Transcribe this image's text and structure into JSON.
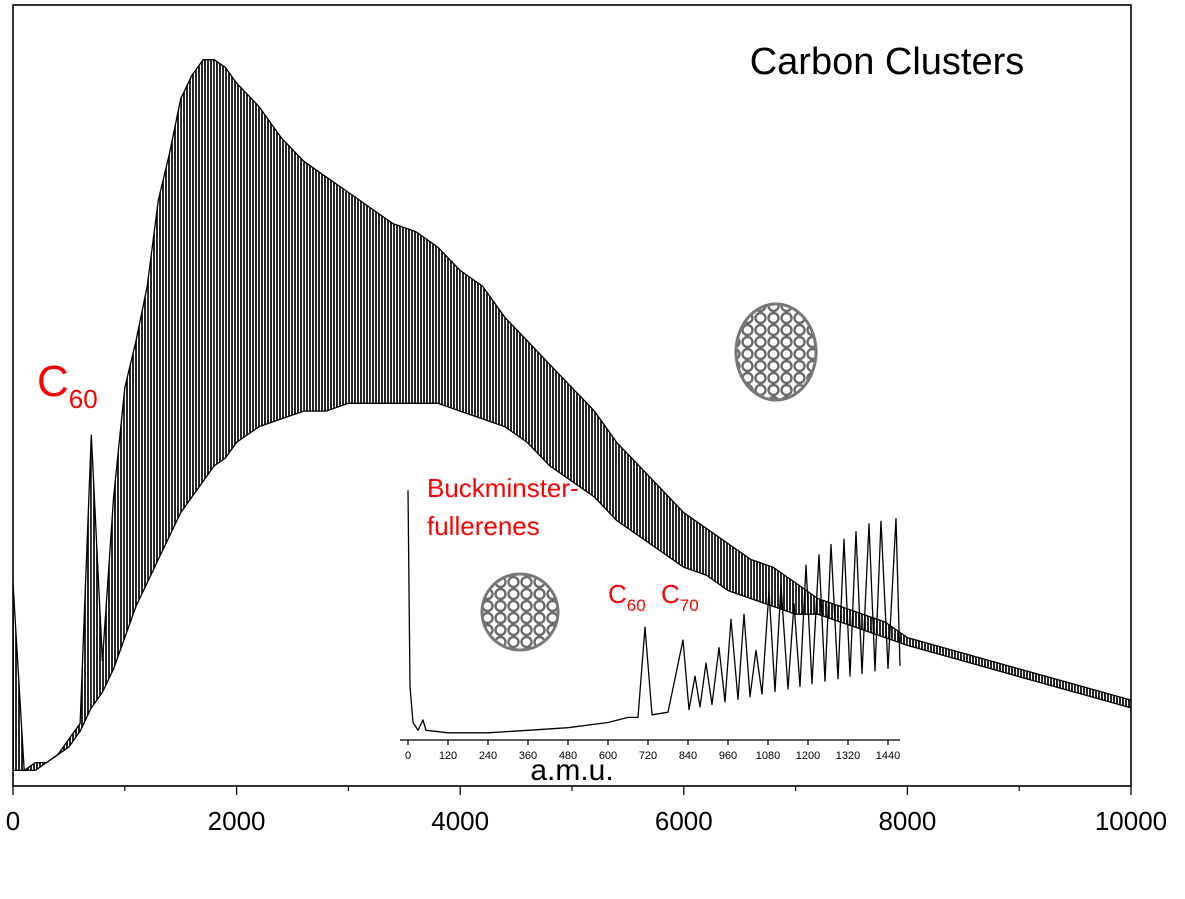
{
  "chart_data": [
    {
      "type": "band",
      "title": "Carbon Clusters",
      "xlabel": "a.m.u.",
      "annotations": [
        {
          "text": "C",
          "sub": "60"
        }
      ],
      "x": [
        0,
        100,
        200,
        300,
        400,
        500,
        600,
        700,
        800,
        900,
        1000,
        1100,
        1200,
        1300,
        1400,
        1500,
        1600,
        1700,
        1800,
        1900,
        2000,
        2200,
        2400,
        2600,
        2800,
        3000,
        3200,
        3400,
        3600,
        3800,
        4000,
        4200,
        4400,
        4600,
        4800,
        5000,
        5200,
        5400,
        5600,
        5800,
        6000,
        6200,
        6400,
        6600,
        6800,
        7000,
        7200,
        7400,
        7600,
        7800,
        8000,
        8500,
        9000,
        9500,
        10000
      ],
      "series": [
        {
          "color": "#000000",
          "values": [
            26,
            2,
            3,
            3,
            4,
            6,
            8,
            45,
            16,
            37,
            51,
            57,
            64,
            75,
            81,
            88,
            91,
            93,
            93,
            92,
            90,
            87,
            83,
            80,
            78,
            76,
            74,
            72,
            71,
            69,
            66,
            64,
            60,
            57,
            54,
            51,
            48,
            44,
            41,
            38,
            35,
            33,
            31,
            29,
            28,
            26,
            24,
            23,
            22,
            21,
            19,
            17,
            15,
            13,
            11
          ]
        },
        {
          "color": "#000000",
          "values": [
            2,
            2,
            2,
            3,
            4,
            5,
            7,
            10,
            12,
            15,
            19,
            23,
            26,
            29,
            32,
            35,
            37,
            39,
            41,
            42,
            44,
            46,
            47,
            48,
            48,
            49,
            49,
            49,
            49,
            49,
            48,
            47,
            46,
            44,
            41,
            39,
            37,
            34,
            32,
            30,
            28,
            27,
            25,
            24,
            23,
            22,
            22,
            21,
            20,
            19,
            18,
            16,
            14,
            12,
            10
          ]
        }
      ],
      "xlim": [
        0,
        10000
      ],
      "ylim": [
        0,
        100
      ],
      "xticks": [
        0,
        2000,
        4000,
        6000,
        8000,
        10000
      ],
      "minor_xticks": [
        1000,
        3000,
        5000,
        7000,
        9000
      ]
    },
    {
      "type": "line",
      "annotations": [
        {
          "text": "Buckminster-"
        },
        {
          "text": "fullerenes"
        },
        {
          "text": "C",
          "sub": "60"
        },
        {
          "text": "C",
          "sub": "70"
        }
      ],
      "x": [
        0,
        6,
        15,
        30,
        45,
        54,
        120,
        240,
        360,
        480,
        600,
        660,
        690,
        711,
        732,
        780,
        825,
        843,
        861,
        876,
        894,
        912,
        933,
        951,
        969,
        990,
        1008,
        1026,
        1044,
        1062,
        1083,
        1101,
        1119,
        1140,
        1158,
        1176,
        1194,
        1212,
        1233,
        1251,
        1269,
        1290,
        1308,
        1326,
        1344,
        1362,
        1383,
        1401,
        1419,
        1440,
        1464,
        1476
      ],
      "series": [
        {
          "color": "#000000",
          "values": [
            96,
            20,
            6,
            3,
            7,
            3,
            2,
            2,
            3,
            4,
            6,
            8,
            8,
            43,
            9,
            10,
            38,
            11,
            24,
            12,
            29,
            13,
            35,
            14,
            46,
            15,
            48,
            16,
            34,
            17,
            57,
            18,
            59,
            19,
            52,
            20,
            67,
            21,
            71,
            22,
            75,
            23,
            77,
            24,
            80,
            25,
            83,
            26,
            84,
            27,
            85,
            28
          ]
        }
      ],
      "xlim": [
        -24,
        1476
      ],
      "ylim": [
        0,
        100
      ],
      "xticks": [
        0,
        120,
        240,
        360,
        480,
        600,
        720,
        840,
        960,
        1080,
        1200,
        1320,
        1440
      ]
    }
  ]
}
